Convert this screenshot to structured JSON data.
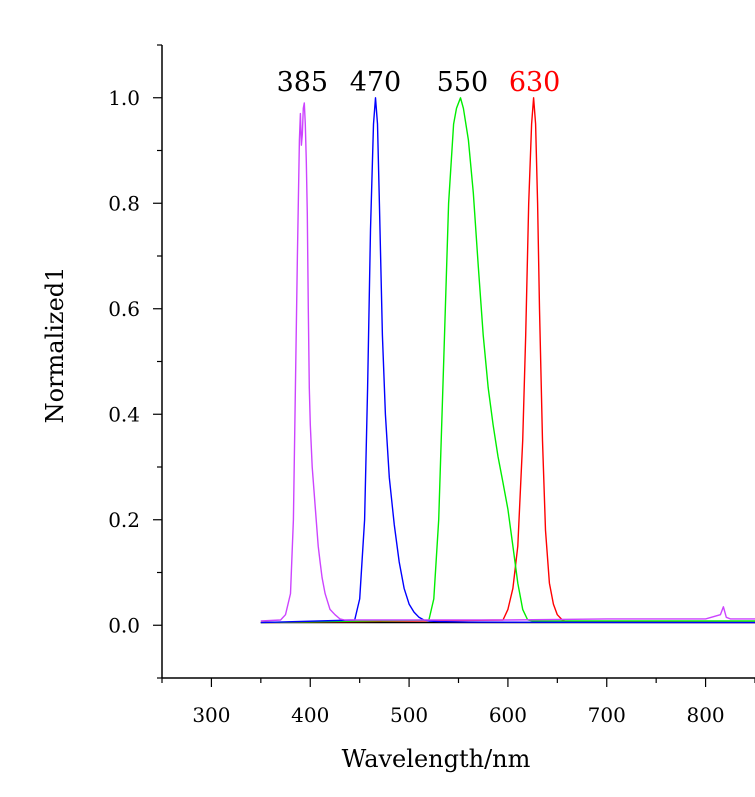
{
  "chart_data": {
    "type": "line",
    "title": "",
    "xlabel": "Wavelength/nm",
    "ylabel": "Normalized1",
    "xlim": [
      250,
      850
    ],
    "ylim": [
      -0.1,
      1.1
    ],
    "x_ticks": [
      300,
      400,
      500,
      600,
      700,
      800
    ],
    "y_ticks": [
      "0.0",
      "0.2",
      "0.4",
      "0.6",
      "0.8",
      "1.0"
    ],
    "grid": false,
    "legend": "none",
    "annotations": [
      {
        "text": "385",
        "x": 392,
        "y": 1.02,
        "color": "#000000"
      },
      {
        "text": "470",
        "x": 466,
        "y": 1.02,
        "color": "#000000"
      },
      {
        "text": "550",
        "x": 554,
        "y": 1.02,
        "color": "#000000"
      },
      {
        "text": "630",
        "x": 627,
        "y": 1.02,
        "color": "#ff0000"
      }
    ],
    "series": [
      {
        "color": "#000000",
        "x": [
          350,
          850
        ],
        "y": [
          0.005,
          0.005
        ]
      },
      {
        "color": "#ff0000",
        "x": [
          350,
          595,
          600,
          605,
          610,
          615,
          618,
          621,
          624,
          626,
          628,
          630,
          632,
          635,
          638,
          642,
          646,
          650,
          655,
          660,
          680,
          850
        ],
        "y": [
          0.005,
          0.01,
          0.03,
          0.07,
          0.15,
          0.35,
          0.55,
          0.8,
          0.95,
          1.0,
          0.95,
          0.8,
          0.6,
          0.35,
          0.18,
          0.08,
          0.04,
          0.02,
          0.01,
          0.006,
          0.006,
          0.005
        ]
      },
      {
        "color": "#00ee00",
        "x": [
          350,
          520,
          525,
          530,
          535,
          540,
          545,
          548,
          550,
          552,
          555,
          560,
          565,
          570,
          575,
          580,
          585,
          590,
          595,
          600,
          605,
          610,
          615,
          620,
          625,
          850
        ],
        "y": [
          0.005,
          0.01,
          0.05,
          0.2,
          0.5,
          0.8,
          0.95,
          0.98,
          0.99,
          1.0,
          0.98,
          0.92,
          0.82,
          0.68,
          0.55,
          0.45,
          0.38,
          0.32,
          0.27,
          0.22,
          0.15,
          0.08,
          0.03,
          0.01,
          0.008,
          0.008
        ]
      },
      {
        "color": "#0000ff",
        "x": [
          350,
          445,
          450,
          455,
          458,
          461,
          464,
          466,
          468,
          470,
          473,
          476,
          480,
          485,
          490,
          495,
          500,
          505,
          510,
          515,
          520,
          530,
          560,
          850
        ],
        "y": [
          0.005,
          0.01,
          0.05,
          0.2,
          0.45,
          0.75,
          0.95,
          1.0,
          0.95,
          0.8,
          0.55,
          0.4,
          0.28,
          0.19,
          0.12,
          0.07,
          0.04,
          0.025,
          0.015,
          0.01,
          0.008,
          0.007,
          0.006,
          0.005
        ]
      },
      {
        "color": "#cc44ff",
        "x": [
          350,
          370,
          375,
          380,
          383,
          385,
          387,
          389,
          390,
          391,
          392,
          393,
          394,
          395,
          396,
          397,
          398,
          399,
          400,
          402,
          404,
          406,
          408,
          410,
          412,
          415,
          420,
          425,
          430,
          435,
          440,
          450,
          500,
          600,
          700,
          800,
          815,
          818,
          821,
          825,
          850
        ],
        "y": [
          0.008,
          0.01,
          0.02,
          0.06,
          0.2,
          0.45,
          0.7,
          0.92,
          0.97,
          0.91,
          0.93,
          0.98,
          0.99,
          0.95,
          0.88,
          0.78,
          0.6,
          0.45,
          0.38,
          0.3,
          0.25,
          0.2,
          0.15,
          0.12,
          0.09,
          0.06,
          0.03,
          0.02,
          0.012,
          0.01,
          0.01,
          0.01,
          0.01,
          0.01,
          0.012,
          0.012,
          0.02,
          0.035,
          0.015,
          0.012,
          0.012
        ]
      }
    ]
  }
}
